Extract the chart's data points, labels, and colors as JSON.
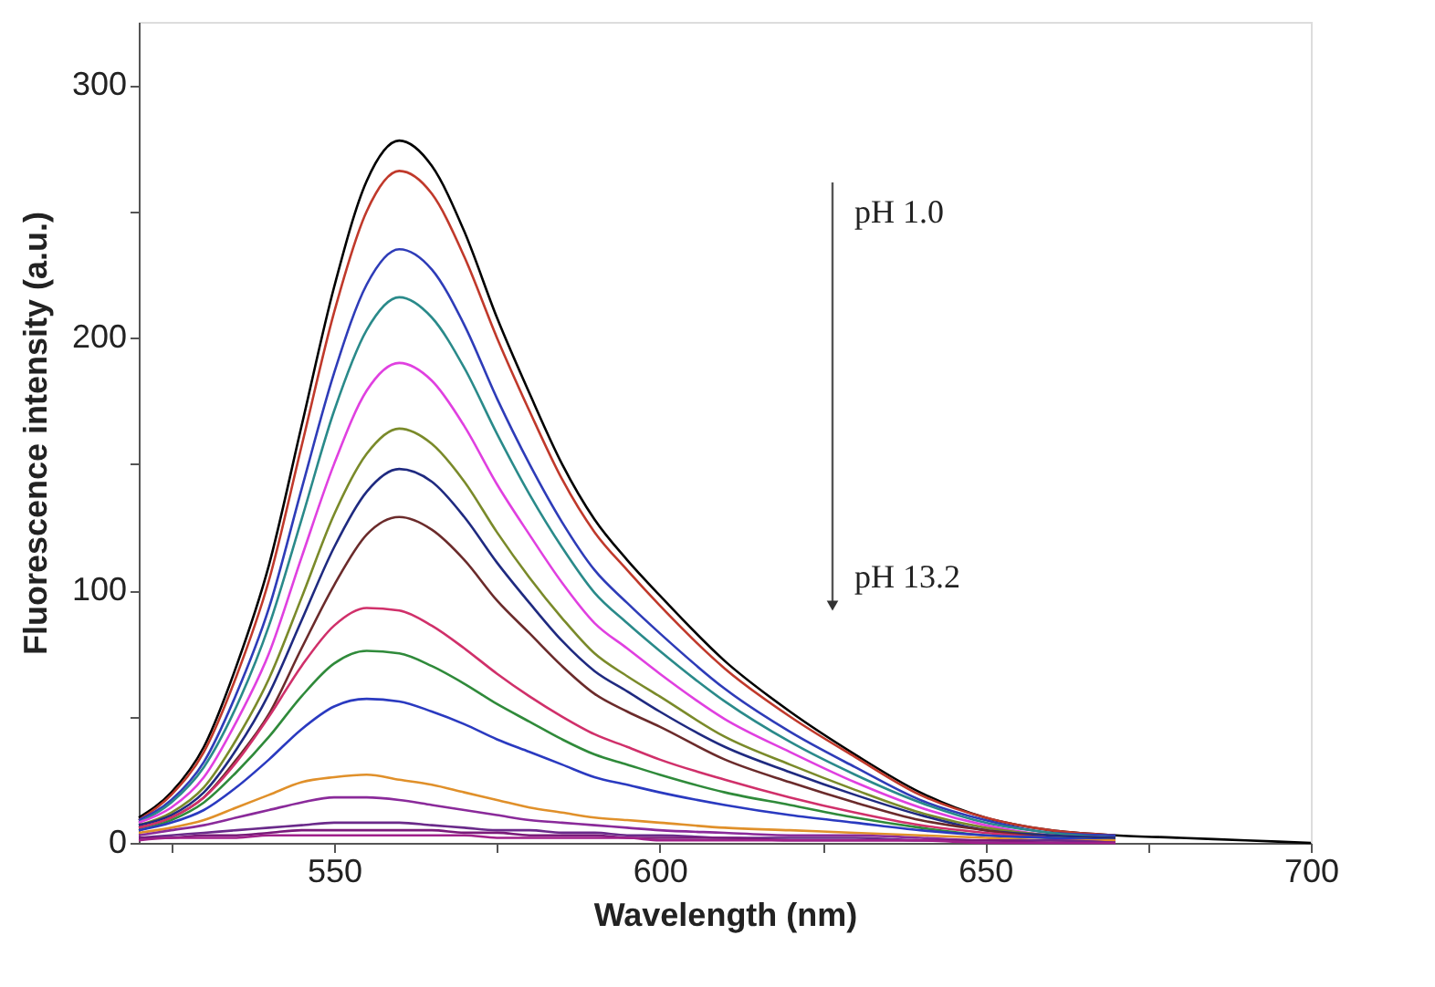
{
  "chart_data": {
    "type": "line",
    "xlabel": "Wavelength (nm)",
    "ylabel": "Fluorescence intensity (a.u.)",
    "x": [
      520,
      525,
      530,
      535,
      540,
      545,
      550,
      555,
      560,
      565,
      570,
      575,
      580,
      585,
      590,
      595,
      600,
      610,
      620,
      630,
      640,
      650,
      660,
      670,
      680,
      690,
      700
    ],
    "xlim": [
      520,
      700
    ],
    "ylim": [
      0,
      325
    ],
    "xticks": [
      {
        "value": 525,
        "label": null
      },
      550,
      {
        "value": 575,
        "label": null
      },
      600,
      {
        "value": 625,
        "label": null
      },
      650,
      {
        "value": 675,
        "label": null
      },
      700
    ],
    "yticks": [
      0,
      {
        "value": 50,
        "label": null
      },
      100,
      {
        "value": 150,
        "label": null
      },
      200,
      {
        "value": 250,
        "label": null
      },
      300
    ],
    "grid": false,
    "legend": false,
    "marker": "none",
    "line_style": "solid",
    "annotations": [
      "pH 1.0",
      "pH 13.2"
    ],
    "series": [
      {
        "color": "#000000",
        "values": [
          10,
          20,
          38,
          70,
          110,
          165,
          220,
          262,
          278,
          268,
          242,
          208,
          178,
          150,
          128,
          112,
          98,
          72,
          52,
          35,
          20,
          10,
          5,
          3,
          2,
          1,
          0
        ]
      },
      {
        "color": "#c0392b",
        "values": [
          9,
          19,
          36,
          66,
          104,
          157,
          210,
          250,
          266,
          257,
          232,
          200,
          171,
          144,
          123,
          108,
          94,
          69,
          50,
          34,
          19,
          10,
          5,
          3,
          null,
          null,
          null
        ]
      },
      {
        "color": "#2e3cb8",
        "values": [
          9,
          17,
          32,
          59,
          93,
          140,
          186,
          221,
          235,
          227,
          205,
          176,
          150,
          127,
          108,
          95,
          83,
          61,
          44,
          30,
          17,
          9,
          4,
          3,
          null,
          null,
          null
        ]
      },
      {
        "color": "#2a8a8a",
        "values": [
          8,
          16,
          30,
          54,
          86,
          128,
          171,
          203,
          216,
          208,
          188,
          162,
          138,
          117,
          99,
          87,
          76,
          56,
          40,
          27,
          16,
          8,
          4,
          2,
          null,
          null,
          null
        ]
      },
      {
        "color": "#e040e0",
        "values": [
          8,
          14,
          26,
          48,
          75,
          113,
          150,
          179,
          190,
          183,
          165,
          142,
          122,
          103,
          87,
          77,
          67,
          49,
          36,
          24,
          14,
          7,
          3,
          2,
          null,
          null,
          null
        ]
      },
      {
        "color": "#7a8a2a",
        "values": [
          7,
          12,
          22,
          41,
          65,
          97,
          130,
          154,
          164,
          158,
          143,
          123,
          105,
          89,
          75,
          66,
          58,
          42,
          31,
          21,
          12,
          6,
          3,
          2,
          null,
          null,
          null
        ]
      },
      {
        "color": "#1f2a80",
        "values": [
          7,
          11,
          20,
          37,
          59,
          88,
          117,
          139,
          148,
          143,
          129,
          111,
          95,
          80,
          68,
          60,
          52,
          38,
          28,
          19,
          11,
          5,
          3,
          2,
          null,
          null,
          null
        ]
      },
      {
        "color": "#6b2b2b",
        "values": [
          6,
          10,
          18,
          33,
          51,
          77,
          102,
          122,
          129,
          124,
          112,
          96,
          83,
          70,
          59,
          52,
          46,
          33,
          24,
          16,
          9,
          5,
          2,
          1,
          null,
          null,
          null
        ]
      },
      {
        "color": "#d0306a",
        "values": [
          6,
          10,
          18,
          32,
          50,
          70,
          86,
          93,
          92,
          86,
          77,
          67,
          58,
          50,
          43,
          38,
          33,
          25,
          18,
          12,
          7,
          4,
          2,
          1,
          null,
          null,
          null
        ]
      },
      {
        "color": "#2f8a3a",
        "values": [
          5,
          9,
          16,
          28,
          42,
          58,
          71,
          76,
          75,
          70,
          63,
          55,
          48,
          41,
          35,
          31,
          27,
          20,
          15,
          10,
          6,
          3,
          2,
          1,
          null,
          null,
          null
        ]
      },
      {
        "color": "#2a3ac0",
        "values": [
          5,
          8,
          13,
          22,
          33,
          45,
          54,
          57,
          56,
          52,
          47,
          41,
          36,
          31,
          26,
          23,
          20,
          15,
          11,
          8,
          5,
          3,
          2,
          1,
          null,
          null,
          null
        ]
      },
      {
        "color": "#e0902a",
        "values": [
          4,
          6,
          9,
          14,
          19,
          24,
          26,
          27,
          25,
          23,
          20,
          17,
          14,
          12,
          10,
          9,
          8,
          6,
          5,
          4,
          3,
          2,
          1,
          1,
          null,
          null,
          null
        ]
      },
      {
        "color": "#8a2a9a",
        "values": [
          3,
          5,
          7,
          10,
          13,
          16,
          18,
          18,
          17,
          15,
          13,
          11,
          9,
          8,
          7,
          6,
          5,
          4,
          3,
          3,
          2,
          1,
          1,
          0,
          null,
          null,
          null
        ]
      },
      {
        "color": "#6a2a8a",
        "values": [
          2,
          3,
          4,
          5,
          6,
          7,
          8,
          8,
          8,
          7,
          6,
          5,
          5,
          4,
          4,
          3,
          3,
          2,
          2,
          2,
          1,
          1,
          1,
          0,
          null,
          null,
          null
        ]
      },
      {
        "color": "#7a1a7a",
        "values": [
          2,
          2,
          3,
          3,
          4,
          5,
          5,
          5,
          5,
          5,
          4,
          4,
          3,
          3,
          3,
          2,
          2,
          2,
          1,
          1,
          1,
          1,
          0,
          0,
          null,
          null,
          null
        ]
      },
      {
        "color": "#a0208a",
        "values": [
          1,
          2,
          2,
          2,
          3,
          3,
          3,
          3,
          3,
          3,
          3,
          2,
          2,
          2,
          2,
          2,
          1,
          1,
          1,
          1,
          1,
          0,
          0,
          0,
          null,
          null,
          null
        ]
      }
    ]
  }
}
